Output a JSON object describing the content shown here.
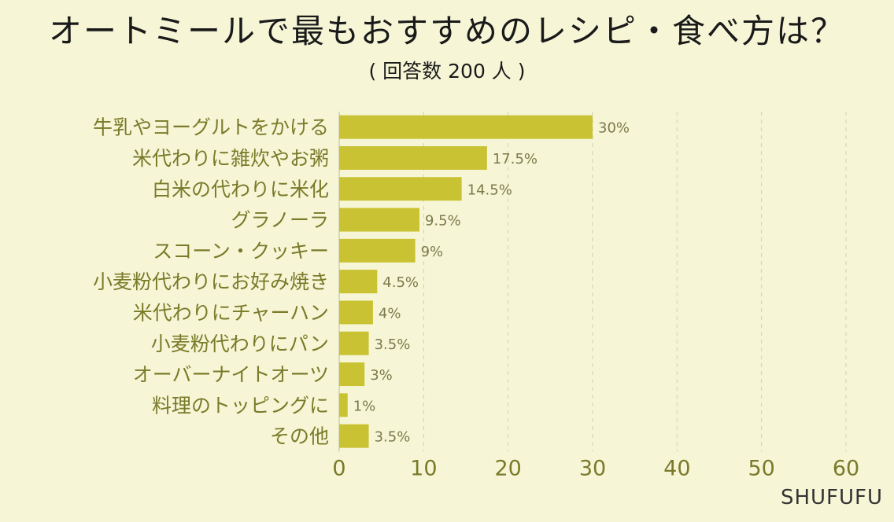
{
  "chart_data": {
    "type": "bar",
    "orientation": "horizontal",
    "title": "オートミールで最もおすすめのレシピ・食べ方は？",
    "subtitle": "( 回答数 200 人 )",
    "categories": [
      "牛乳やヨーグルトをかける",
      "米代わりに雑炊やお粥",
      "白米の代わりに米化",
      "グラノーラ",
      "スコーン・クッキー",
      "小麦粉代わりにお好み焼き",
      "米代わりにチャーハン",
      "小麦粉代わりにパン",
      "オーバーナイトオーツ",
      "料理のトッピングに",
      "その他"
    ],
    "values": [
      30,
      17.5,
      14.5,
      9.5,
      9,
      4.5,
      4,
      3.5,
      3,
      1,
      3.5
    ],
    "value_labels": [
      "30%",
      "17.5%",
      "14.5%",
      "9.5%",
      "9%",
      "4.5%",
      "4%",
      "3.5%",
      "3%",
      "1%",
      "3.5%"
    ],
    "xlim": [
      0,
      60
    ],
    "x_ticks": [
      "0",
      "10",
      "20",
      "30",
      "40",
      "50",
      "60"
    ],
    "grid": "vertical-dashed",
    "bar_color": "#c9c232"
  },
  "watermark": "SHUFUFU"
}
